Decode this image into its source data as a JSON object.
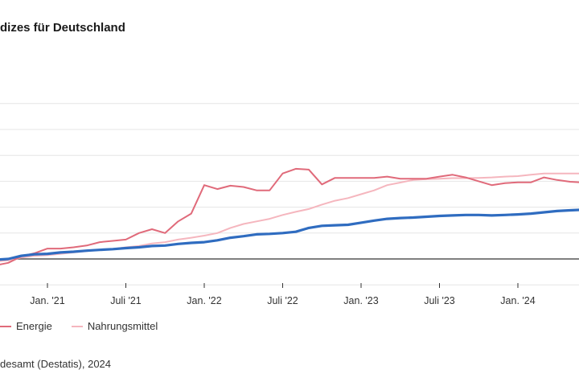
{
  "title": "dizes für Deutschland",
  "source": "desamt (Destatis), 2024",
  "legend": {
    "energie": "Energie",
    "nahrungsmittel": "Nahrungsmittel"
  },
  "colors": {
    "energie": "#e06a7a",
    "nahrungsmittel": "#f5b6be",
    "gesamt": "#2f6cc0",
    "grid": "#e6e6e6",
    "baseline": "#333333"
  },
  "chart_data": {
    "type": "line",
    "title": "dizes für Deutschland",
    "xlabel": "",
    "ylabel": "",
    "x_ticks": [
      "Jan. '21",
      "Juli '21",
      "Jan. '22",
      "Juli '22",
      "Jan. '23",
      "Juli '23",
      "Jan. '24"
    ],
    "x_range": [
      "2020-07",
      "2024-07"
    ],
    "y_range": [
      -10,
      60
    ],
    "y_grid": [
      -10,
      0,
      10,
      20,
      30,
      40,
      50,
      60
    ],
    "baseline": 0,
    "grid": true,
    "legend_position": "bottom-left",
    "series": [
      {
        "name": "Energie",
        "color": "#e06a7a",
        "x": [
          "2020-07",
          "2020-08",
          "2020-09",
          "2020-10",
          "2020-11",
          "2020-12",
          "2021-01",
          "2021-02",
          "2021-03",
          "2021-04",
          "2021-05",
          "2021-06",
          "2021-07",
          "2021-08",
          "2021-09",
          "2021-10",
          "2021-11",
          "2021-12",
          "2022-01",
          "2022-02",
          "2022-03",
          "2022-04",
          "2022-05",
          "2022-06",
          "2022-07",
          "2022-08",
          "2022-09",
          "2022-10",
          "2022-11",
          "2022-12",
          "2023-01",
          "2023-02",
          "2023-03",
          "2023-04",
          "2023-05",
          "2023-06",
          "2023-07",
          "2023-08",
          "2023-09",
          "2023-10",
          "2023-11",
          "2023-12",
          "2024-01",
          "2024-02",
          "2024-03",
          "2024-04",
          "2024-05",
          "2024-06"
        ],
        "values": [
          -1.5,
          -1.5,
          -2.5,
          -1.5,
          1.0,
          2.2,
          4.0,
          4.0,
          4.5,
          5.2,
          6.5,
          7.0,
          7.5,
          10.0,
          11.5,
          10.0,
          14.5,
          17.5,
          28.5,
          27.0,
          28.3,
          27.8,
          26.5,
          26.5,
          33.0,
          34.8,
          34.5,
          28.8,
          31.3,
          31.3,
          31.3,
          31.3,
          31.8,
          31.0,
          31.0,
          31.0,
          31.8,
          32.5,
          31.5,
          30.0,
          28.5,
          29.3,
          29.6,
          29.6,
          31.5,
          30.5,
          29.8,
          29.5
        ]
      },
      {
        "name": "Nahrungsmittel",
        "color": "#f5b6be",
        "x": [
          "2020-07",
          "2020-08",
          "2020-09",
          "2020-10",
          "2020-11",
          "2020-12",
          "2021-01",
          "2021-02",
          "2021-03",
          "2021-04",
          "2021-05",
          "2021-06",
          "2021-07",
          "2021-08",
          "2021-09",
          "2021-10",
          "2021-11",
          "2021-12",
          "2022-01",
          "2022-02",
          "2022-03",
          "2022-04",
          "2022-05",
          "2022-06",
          "2022-07",
          "2022-08",
          "2022-09",
          "2022-10",
          "2022-11",
          "2022-12",
          "2023-01",
          "2023-02",
          "2023-03",
          "2023-04",
          "2023-05",
          "2023-06",
          "2023-07",
          "2023-08",
          "2023-09",
          "2023-10",
          "2023-11",
          "2023-12",
          "2024-01",
          "2024-02",
          "2024-03",
          "2024-04",
          "2024-05",
          "2024-06"
        ],
        "values": [
          -0.5,
          -0.5,
          -1.0,
          -0.5,
          0.5,
          1.2,
          1.5,
          2.0,
          2.5,
          3.0,
          3.5,
          3.8,
          4.5,
          5.0,
          6.0,
          6.5,
          7.5,
          8.2,
          9.0,
          10.0,
          12.0,
          13.5,
          14.5,
          15.5,
          17.0,
          18.2,
          19.3,
          21.0,
          22.5,
          23.5,
          25.0,
          26.5,
          28.5,
          29.5,
          30.5,
          30.8,
          31.0,
          31.2,
          31.2,
          31.3,
          31.5,
          31.8,
          32.0,
          32.5,
          33.0,
          33.0,
          33.0,
          33.0
        ]
      },
      {
        "name": "",
        "color": "#2f6cc0",
        "x": [
          "2020-07",
          "2020-08",
          "2020-09",
          "2020-10",
          "2020-11",
          "2020-12",
          "2021-01",
          "2021-02",
          "2021-03",
          "2021-04",
          "2021-05",
          "2021-06",
          "2021-07",
          "2021-08",
          "2021-09",
          "2021-10",
          "2021-11",
          "2021-12",
          "2022-01",
          "2022-02",
          "2022-03",
          "2022-04",
          "2022-05",
          "2022-06",
          "2022-07",
          "2022-08",
          "2022-09",
          "2022-10",
          "2022-11",
          "2022-12",
          "2023-01",
          "2023-02",
          "2023-03",
          "2023-04",
          "2023-05",
          "2023-06",
          "2023-07",
          "2023-08",
          "2023-09",
          "2023-10",
          "2023-11",
          "2023-12",
          "2024-01",
          "2024-02",
          "2024-03",
          "2024-04",
          "2024-05",
          "2024-06"
        ],
        "values": [
          0.0,
          0.0,
          -0.3,
          0.0,
          1.2,
          1.8,
          2.0,
          2.5,
          2.8,
          3.2,
          3.5,
          3.8,
          4.2,
          4.5,
          5.0,
          5.2,
          5.8,
          6.2,
          6.5,
          7.2,
          8.2,
          8.8,
          9.5,
          9.7,
          10.0,
          10.5,
          12.0,
          12.8,
          13.0,
          13.2,
          14.0,
          14.8,
          15.5,
          15.8,
          16.0,
          16.3,
          16.6,
          16.8,
          17.0,
          17.0,
          16.8,
          17.0,
          17.2,
          17.5,
          18.0,
          18.5,
          18.8,
          19.0
        ]
      }
    ]
  }
}
